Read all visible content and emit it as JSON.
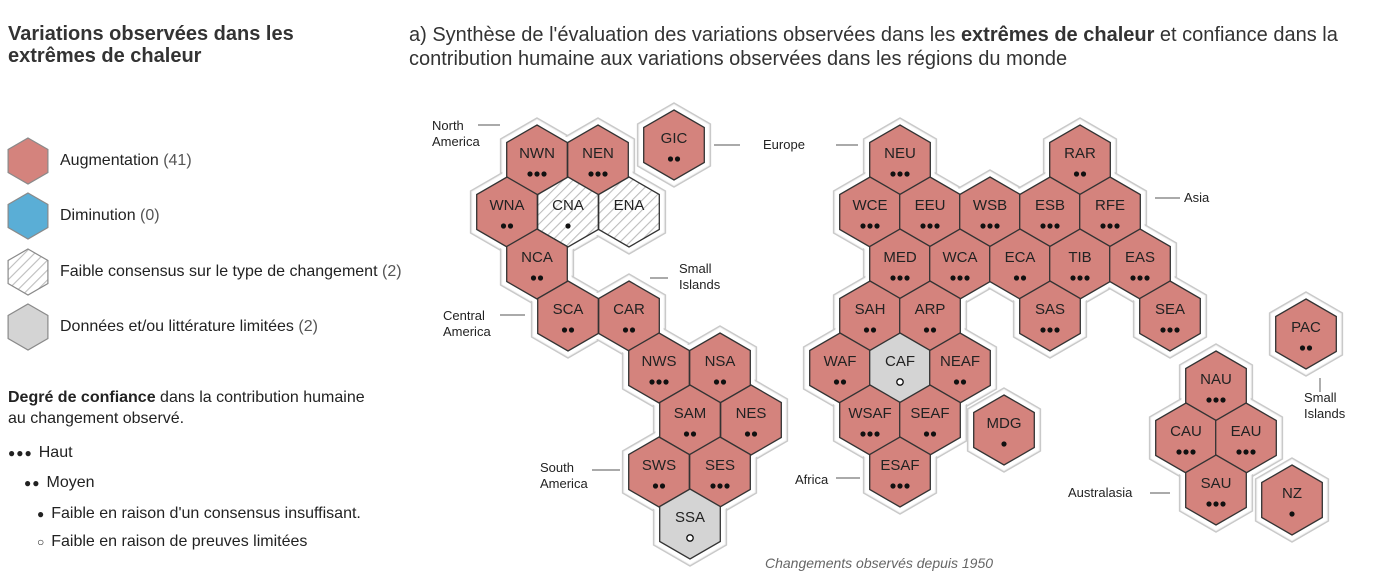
{
  "side_title": "Variations  observées dans les extrêmes de chaleur",
  "main_title": {
    "prefix": "a) Synthèse de l'évaluation des variations observées dans les ",
    "bold": "extrêmes de chaleur",
    "suffix": " et confiance dans la contribution humaine aux variations observées dans les régions du monde"
  },
  "legend": {
    "items": [
      {
        "label": "Augmentation",
        "count": "(41)",
        "kind": "increase"
      },
      {
        "label": "Diminution",
        "count": "(0)",
        "kind": "decrease"
      },
      {
        "label": "Faible consensus sur le type de changement",
        "count": "(2)",
        "kind": "low-agreement"
      },
      {
        "label": "Données et/ou littérature limitées",
        "count": "(2)",
        "kind": "limited-data"
      }
    ],
    "confidence_title_bold": "Degré de confiance",
    "confidence_title_rest": " dans la contribution humaine au changement observé.",
    "confidence_levels": [
      {
        "glyph": "●●●",
        "label": "Haut"
      },
      {
        "glyph": "●●",
        "label": "Moyen"
      },
      {
        "glyph": "●",
        "label": "Faible en raison d'un consensus insuffisant."
      },
      {
        "glyph": "○",
        "label": "Faible en raison de preuves limitées"
      }
    ]
  },
  "colors": {
    "increase": "#d4837d",
    "decrease": "#5aaed6",
    "limited": "#d4d4d4",
    "stroke": "#333333",
    "outline": "#c9c9c9",
    "hatch": "#b8b8b8"
  },
  "regions": [
    {
      "code": "NWN",
      "fill": "increase",
      "conf": 3
    },
    {
      "code": "NEN",
      "fill": "increase",
      "conf": 3
    },
    {
      "code": "GIC",
      "fill": "increase",
      "conf": 2
    },
    {
      "code": "WNA",
      "fill": "increase",
      "conf": 2
    },
    {
      "code": "CNA",
      "fill": "low-agreement",
      "conf": 1
    },
    {
      "code": "ENA",
      "fill": "low-agreement",
      "conf": 0
    },
    {
      "code": "NCA",
      "fill": "increase",
      "conf": 2
    },
    {
      "code": "SCA",
      "fill": "increase",
      "conf": 2
    },
    {
      "code": "CAR",
      "fill": "increase",
      "conf": 2
    },
    {
      "code": "NWS",
      "fill": "increase",
      "conf": 3
    },
    {
      "code": "NSA",
      "fill": "increase",
      "conf": 2
    },
    {
      "code": "SAM",
      "fill": "increase",
      "conf": 2
    },
    {
      "code": "NES",
      "fill": "increase",
      "conf": 2
    },
    {
      "code": "SWS",
      "fill": "increase",
      "conf": 2
    },
    {
      "code": "SES",
      "fill": "increase",
      "conf": 3
    },
    {
      "code": "SSA",
      "fill": "limited",
      "conf": -1
    },
    {
      "code": "NEU",
      "fill": "increase",
      "conf": 3
    },
    {
      "code": "RAR",
      "fill": "increase",
      "conf": 2
    },
    {
      "code": "WCE",
      "fill": "increase",
      "conf": 3
    },
    {
      "code": "EEU",
      "fill": "increase",
      "conf": 3
    },
    {
      "code": "WSB",
      "fill": "increase",
      "conf": 3
    },
    {
      "code": "ESB",
      "fill": "increase",
      "conf": 3
    },
    {
      "code": "RFE",
      "fill": "increase",
      "conf": 3
    },
    {
      "code": "MED",
      "fill": "increase",
      "conf": 3
    },
    {
      "code": "WCA",
      "fill": "increase",
      "conf": 3
    },
    {
      "code": "ECA",
      "fill": "increase",
      "conf": 2
    },
    {
      "code": "TIB",
      "fill": "increase",
      "conf": 3
    },
    {
      "code": "EAS",
      "fill": "increase",
      "conf": 3
    },
    {
      "code": "SAH",
      "fill": "increase",
      "conf": 2
    },
    {
      "code": "ARP",
      "fill": "increase",
      "conf": 2
    },
    {
      "code": "SAS",
      "fill": "increase",
      "conf": 3
    },
    {
      "code": "SEA",
      "fill": "increase",
      "conf": 3
    },
    {
      "code": "WAF",
      "fill": "increase",
      "conf": 2
    },
    {
      "code": "CAF",
      "fill": "limited",
      "conf": -1
    },
    {
      "code": "NEAF",
      "fill": "increase",
      "conf": 2
    },
    {
      "code": "WSAF",
      "fill": "increase",
      "conf": 3
    },
    {
      "code": "SEAF",
      "fill": "increase",
      "conf": 2
    },
    {
      "code": "MDG",
      "fill": "increase",
      "conf": 1
    },
    {
      "code": "ESAF",
      "fill": "increase",
      "conf": 3
    },
    {
      "code": "PAC",
      "fill": "increase",
      "conf": 2
    },
    {
      "code": "NAU",
      "fill": "increase",
      "conf": 3
    },
    {
      "code": "CAU",
      "fill": "increase",
      "conf": 3
    },
    {
      "code": "EAU",
      "fill": "increase",
      "conf": 3
    },
    {
      "code": "SAU",
      "fill": "increase",
      "conf": 3
    },
    {
      "code": "NZ",
      "fill": "increase",
      "conf": 1
    }
  ],
  "region_groups": {
    "north_america": "North America",
    "europe": "Europe",
    "asia": "Asia",
    "small_islands_1": "Small Islands",
    "central_america": "Central America",
    "south_america": "South America",
    "africa": "Africa",
    "small_islands_2": "Small Islands",
    "australasia": "Australasia"
  },
  "footer": "Changements observés depuis 1950"
}
